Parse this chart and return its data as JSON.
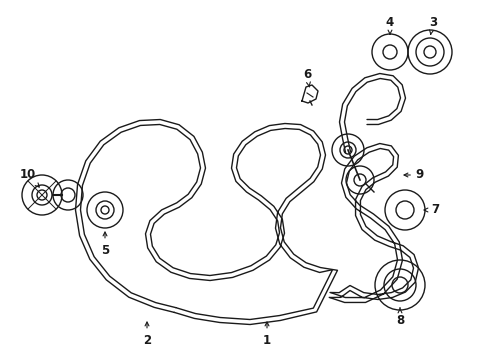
{
  "background_color": "#ffffff",
  "line_color": "#1a1a1a",
  "lw": 1.0,
  "fig_width": 4.89,
  "fig_height": 3.6,
  "dpi": 100
}
